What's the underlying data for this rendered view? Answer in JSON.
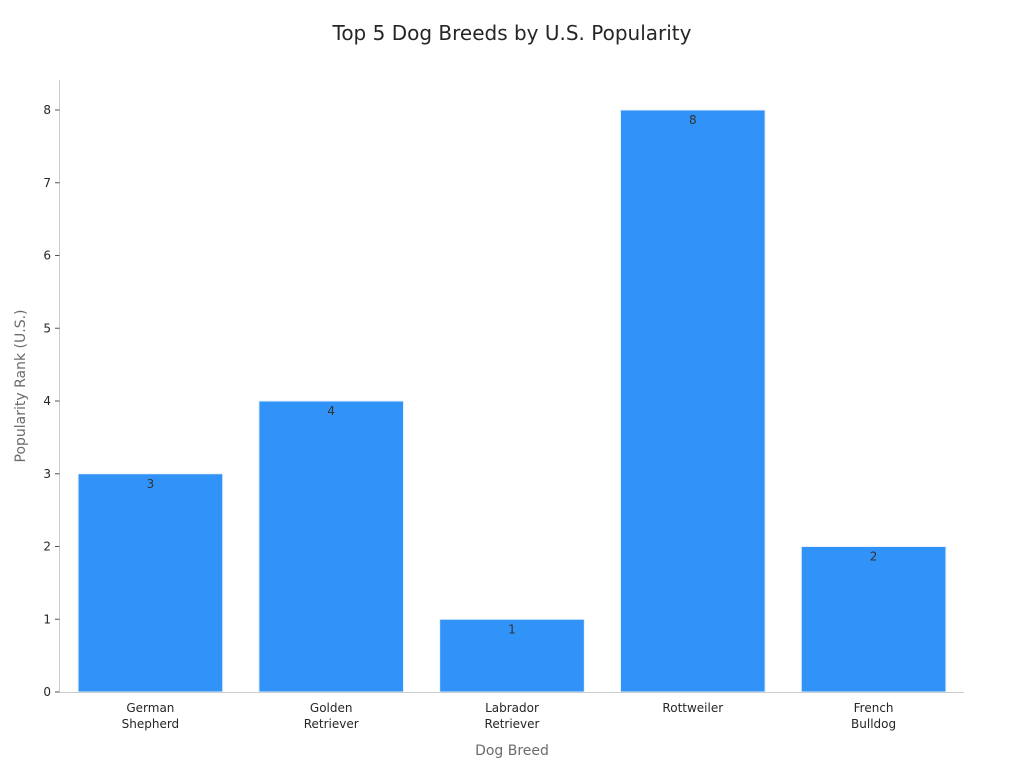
{
  "chart_data": {
    "type": "bar",
    "title": "Top 5 Dog Breeds by U.S. Popularity",
    "xlabel": "Dog Breed",
    "ylabel": "Popularity Rank (U.S.)",
    "categories": [
      [
        "German",
        "Shepherd"
      ],
      [
        "Golden",
        "Retriever"
      ],
      [
        "Labrador",
        "Retriever"
      ],
      [
        "Rottweiler"
      ],
      [
        "French",
        "Bulldog"
      ]
    ],
    "values": [
      3,
      4,
      1,
      8,
      2
    ],
    "data_labels": [
      "3",
      "4",
      "1",
      "8",
      "2"
    ],
    "yticks": [
      0,
      1,
      2,
      3,
      4,
      5,
      6,
      7,
      8
    ],
    "ylim": [
      0,
      8.4
    ],
    "bar_color": "#3192f8",
    "bar_edge_color": "#e8f1fc",
    "grid": false,
    "legend": "none"
  }
}
